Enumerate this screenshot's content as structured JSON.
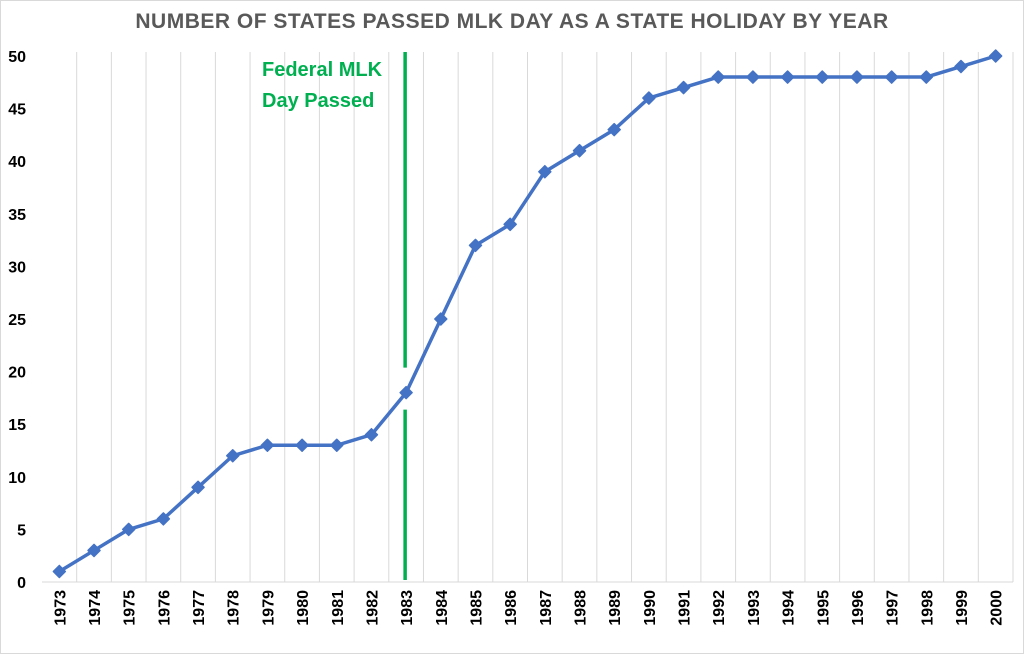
{
  "chart_data": {
    "type": "line",
    "title": "NUMBER OF STATES PASSED MLK DAY AS A STATE HOLIDAY BY YEAR",
    "xlabel": "",
    "ylabel": "",
    "categories": [
      "1973",
      "1974",
      "1975",
      "1976",
      "1977",
      "1978",
      "1979",
      "1980",
      "1981",
      "1982",
      "1983",
      "1984",
      "1985",
      "1986",
      "1987",
      "1988",
      "1989",
      "1990",
      "1991",
      "1992",
      "1993",
      "1994",
      "1995",
      "1996",
      "1997",
      "1998",
      "1999",
      "2000"
    ],
    "values": [
      1,
      3,
      5,
      6,
      9,
      12,
      13,
      13,
      13,
      14,
      18,
      25,
      32,
      34,
      39,
      41,
      43,
      46,
      47,
      48,
      48,
      48,
      48,
      48,
      48,
      48,
      49,
      50
    ],
    "ylim": [
      0,
      50
    ],
    "yticks": [
      0,
      5,
      10,
      15,
      20,
      25,
      30,
      35,
      40,
      45,
      50
    ],
    "grid": "vertical only",
    "legend": "none",
    "series_color": "#4472c4",
    "annotation": {
      "text_lines": [
        "Federal MLK",
        "Day Passed"
      ],
      "at_category": "1983",
      "color": "#00b050"
    }
  }
}
